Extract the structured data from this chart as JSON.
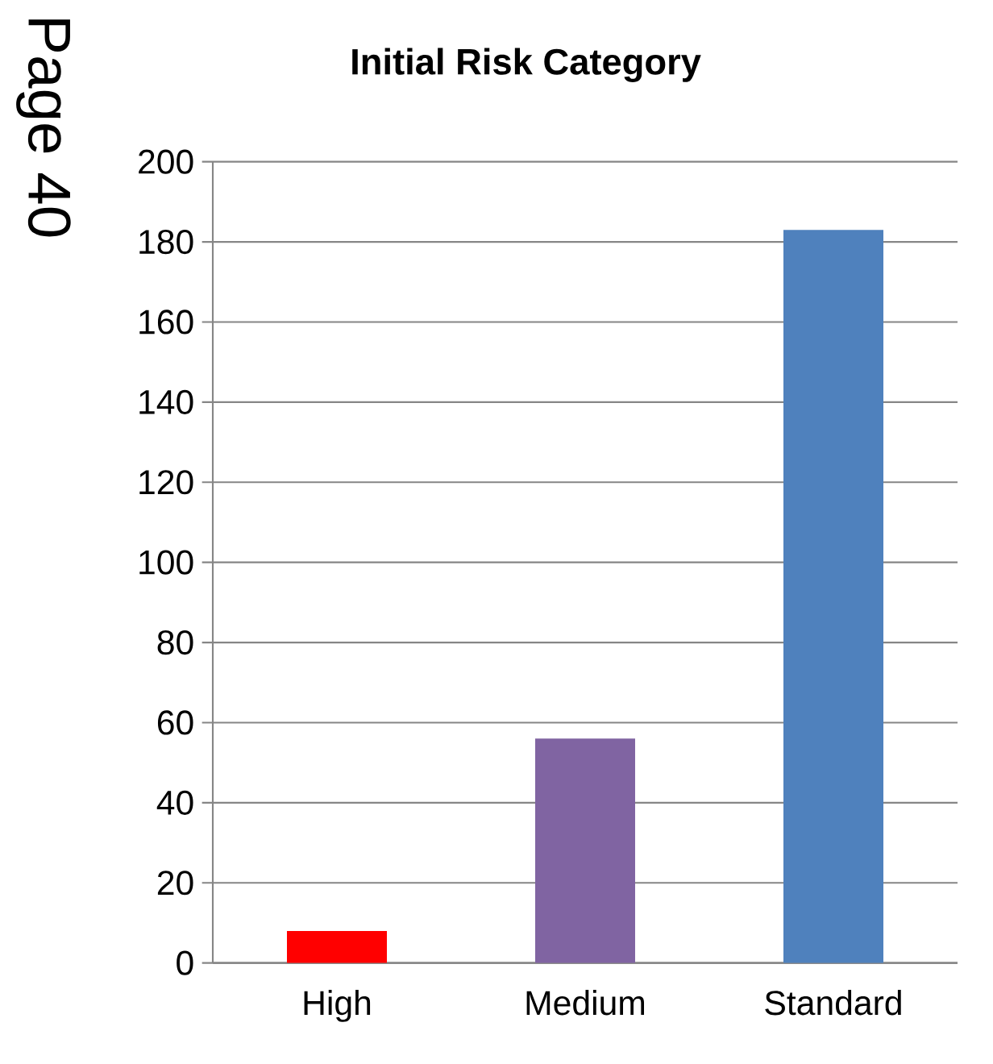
{
  "chart_data": {
    "type": "bar",
    "title": "Initial Risk Category",
    "categories": [
      "High",
      "Medium",
      "Standard"
    ],
    "values": [
      8,
      56,
      183
    ],
    "colors": [
      "#ff0000",
      "#8064a2",
      "#4f81bd"
    ],
    "ylim": [
      0,
      200
    ],
    "yticks": [
      0,
      20,
      40,
      60,
      80,
      100,
      120,
      140,
      160,
      180,
      200
    ],
    "grid": "y",
    "annotations": [
      "Page 40"
    ]
  }
}
